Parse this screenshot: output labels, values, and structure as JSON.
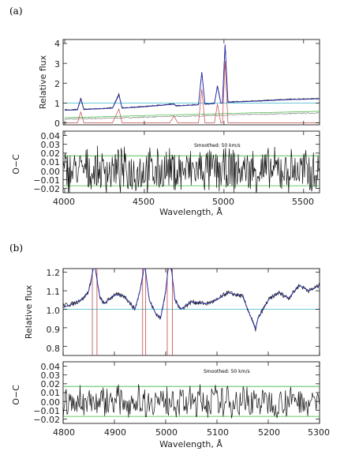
{
  "panels": [
    {
      "label": "(a)",
      "xlabel": "Wavelength, Å",
      "xticklabels": [
        "4000",
        "4500",
        "5000",
        "5500"
      ],
      "top": {
        "ylabel": "Relative flux",
        "yticklabels": [
          "0",
          "1",
          "2",
          "3",
          "4"
        ]
      },
      "bottom": {
        "ylabel": "O−C",
        "yticklabels": [
          "−0.02",
          "−0.01",
          "0.00",
          "0.01",
          "0.02",
          "0.03",
          "0.04"
        ],
        "annotation": "Smoothed: 50 km/s"
      }
    },
    {
      "label": "(b)",
      "xlabel": "Wavelength, Å",
      "xticklabels": [
        "4800",
        "4900",
        "5000",
        "5100",
        "5200",
        "5300"
      ],
      "top": {
        "ylabel": "Relative flux",
        "yticklabels": [
          "0.8",
          "0.9",
          "1.0",
          "1.1",
          "1.2"
        ]
      },
      "bottom": {
        "ylabel": "O−C",
        "yticklabels": [
          "−0.02",
          "−0.01",
          "0.00",
          "0.01",
          "0.02",
          "0.03",
          "0.04"
        ],
        "annotation": "Smoothed: 50 km/s"
      }
    }
  ],
  "colors": {
    "observed": "#111111",
    "model": "#2b2fb0",
    "continuum": "#38b8c8",
    "emission": "#c04848",
    "stellar": "#8a8a8a",
    "residual_band": "#3cb83c"
  },
  "chart_data": [
    {
      "type": "line",
      "title": "",
      "xlabel": "Wavelength, Å",
      "ylabel": "Relative flux",
      "xlim": [
        3990,
        5600
      ],
      "ylim": [
        -0.1,
        4.2
      ],
      "series": [
        {
          "x": [
            4000,
            4080,
            4101,
            4120,
            4300,
            4340,
            4360,
            4500,
            4686,
            4700,
            4840,
            4861,
            4880,
            4940,
            4959,
            4980,
            4990,
            5007,
            5025,
            5200,
            5400,
            5600
          ],
          "values": [
            0.65,
            0.67,
            1.25,
            0.68,
            0.75,
            1.45,
            0.75,
            0.82,
            0.95,
            0.86,
            0.92,
            2.6,
            0.95,
            0.98,
            1.9,
            1.0,
            1.0,
            4.0,
            1.05,
            1.1,
            1.18,
            1.22
          ]
        },
        {
          "x": [
            4000,
            4080,
            4101,
            4120,
            4300,
            4340,
            4360,
            4500,
            4686,
            4700,
            4840,
            4861,
            4880,
            4940,
            4959,
            4980,
            4990,
            5007,
            5025,
            5200,
            5400,
            5600
          ],
          "values": [
            0.63,
            0.66,
            1.2,
            0.67,
            0.74,
            1.4,
            0.74,
            0.81,
            0.94,
            0.85,
            0.91,
            2.55,
            0.94,
            0.97,
            1.85,
            0.99,
            0.99,
            3.95,
            1.04,
            1.09,
            1.17,
            1.21
          ]
        },
        {
          "x": [
            4000,
            5600
          ],
          "values": [
            1.0,
            1.0
          ]
        },
        {
          "x": [
            4000,
            4200,
            4400,
            4600,
            4800,
            5000,
            5200,
            5400,
            5600
          ],
          "values": [
            0.18,
            0.22,
            0.26,
            0.31,
            0.34,
            0.39,
            0.43,
            0.46,
            0.5
          ]
        },
        {
          "x": [
            4000,
            4080,
            4101,
            4120,
            4300,
            4340,
            4360,
            4660,
            4686,
            4710,
            4840,
            4861,
            4880,
            4940,
            4959,
            4980,
            4990,
            5007,
            5025,
            5600
          ],
          "values": [
            0.0,
            0.0,
            0.55,
            0.0,
            0.0,
            0.7,
            0.0,
            0.0,
            0.35,
            0.0,
            0.0,
            1.7,
            0.0,
            0.0,
            0.95,
            0.0,
            0.0,
            3.1,
            0.0,
            0.0
          ]
        }
      ]
    },
    {
      "type": "line",
      "title": "",
      "xlabel": "Wavelength, Å",
      "ylabel": "O−C",
      "xlim": [
        3990,
        5600
      ],
      "ylim": [
        -0.025,
        0.045
      ],
      "annotation": "Smoothed: 50 km/s",
      "series": [
        {
          "x": [
            3990,
            5600
          ],
          "values": [
            0.017,
            0.017
          ]
        },
        {
          "x": [
            3990,
            5600
          ],
          "values": [
            -0.017,
            -0.017
          ]
        },
        {
          "x": [
            3990,
            5600
          ],
          "values": [
            0,
            0
          ],
          "noise_amplitude": 0.022
        }
      ]
    },
    {
      "type": "line",
      "title": "",
      "xlabel": "Wavelength, Å",
      "ylabel": "Relative flux",
      "xlim": [
        4800,
        5300
      ],
      "ylim": [
        0.75,
        1.22
      ],
      "series": [
        {
          "x": [
            4800,
            4820,
            4840,
            4850,
            4856,
            4861,
            4866,
            4872,
            4880,
            4900,
            4920,
            4940,
            4950,
            4955,
            4959,
            4963,
            4968,
            4980,
            4990,
            5000,
            5004,
            5007,
            5012,
            5018,
            5030,
            5050,
            5080,
            5100,
            5120,
            5150,
            5170,
            5175,
            5180,
            5200,
            5220,
            5240,
            5260,
            5280,
            5300
          ],
          "values": [
            1.02,
            1.03,
            1.06,
            1.1,
            1.18,
            1.25,
            1.16,
            1.06,
            1.03,
            1.08,
            1.07,
            1.0,
            1.1,
            1.18,
            1.25,
            1.16,
            1.05,
            0.98,
            0.95,
            1.1,
            1.2,
            1.25,
            1.2,
            1.05,
            1.0,
            1.04,
            1.03,
            1.05,
            1.09,
            1.07,
            0.93,
            0.89,
            0.95,
            1.05,
            1.09,
            1.06,
            1.13,
            1.1,
            1.13
          ]
        },
        {
          "x": [
            4800,
            4820,
            4840,
            4850,
            4856,
            4861,
            4866,
            4872,
            4880,
            4900,
            4920,
            4940,
            4950,
            4955,
            4959,
            4963,
            4968,
            4980,
            4990,
            5000,
            5004,
            5007,
            5012,
            5018,
            5030,
            5050,
            5080,
            5100,
            5120,
            5150,
            5170,
            5175,
            5180,
            5200,
            5220,
            5240,
            5260,
            5280,
            5300
          ],
          "values": [
            1.01,
            1.03,
            1.06,
            1.1,
            1.18,
            1.25,
            1.16,
            1.06,
            1.03,
            1.08,
            1.07,
            1.0,
            1.1,
            1.18,
            1.25,
            1.16,
            1.05,
            0.98,
            0.95,
            1.1,
            1.2,
            1.25,
            1.2,
            1.05,
            1.0,
            1.04,
            1.03,
            1.05,
            1.09,
            1.07,
            0.93,
            0.89,
            0.95,
            1.05,
            1.09,
            1.06,
            1.13,
            1.1,
            1.13
          ]
        },
        {
          "x": [
            4800,
            5300
          ],
          "values": [
            1.0,
            1.0
          ]
        },
        {
          "x": [
            4800,
            4857,
            4858,
            4866,
            4867,
            5300
          ],
          "values": [
            0.7,
            0.7,
            1.3,
            1.3,
            0.7,
            0.7
          ],
          "segments": "vertical spikes"
        },
        {
          "x": [
            4955,
            4956,
            4960,
            4961,
            5003,
            5004,
            5012,
            5013
          ],
          "values": [
            0.7,
            1.3,
            1.3,
            0.7,
            0.7,
            1.3,
            1.3,
            0.7
          ]
        }
      ]
    },
    {
      "type": "line",
      "title": "",
      "xlabel": "Wavelength, Å",
      "ylabel": "O−C",
      "xlim": [
        4800,
        5300
      ],
      "ylim": [
        -0.025,
        0.045
      ],
      "annotation": "Smoothed: 50 km/s",
      "series": [
        {
          "x": [
            4800,
            5300
          ],
          "values": [
            0.017,
            0.017
          ]
        },
        {
          "x": [
            4800,
            5300
          ],
          "values": [
            -0.017,
            -0.017
          ]
        },
        {
          "x": [
            4800,
            5300
          ],
          "values": [
            0,
            0
          ],
          "noise_amplitude": 0.016
        }
      ]
    }
  ]
}
